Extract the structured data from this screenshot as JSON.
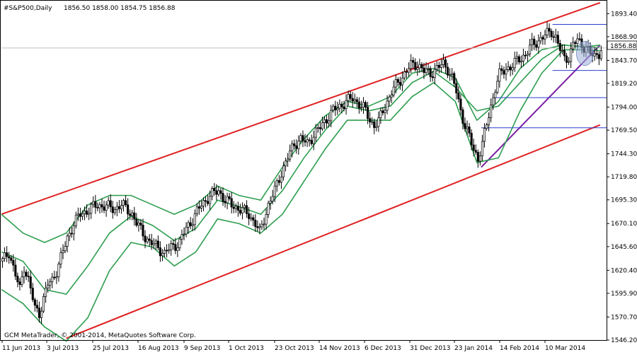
{
  "header": {
    "symbol_text": "#S&P500,Daily",
    "ohlc_text": "1856.50 1858.00 1854.75 1856.88"
  },
  "footer": {
    "copyright_text": "GCM MetaTrader, © 2001-2014, MetaQuotes Software Corp."
  },
  "current_price_label": "1856.88",
  "chart_data": {
    "type": "candlestick",
    "title": "#S&P500,Daily",
    "xlabel": "",
    "ylabel": "",
    "ylim": [
      1546.2,
      1906.4
    ],
    "y_ticks": [
      "1546.20",
      "1570.70",
      "1595.90",
      "1620.40",
      "1645.60",
      "1670.10",
      "1695.30",
      "1719.80",
      "1744.30",
      "1769.50",
      "1794.00",
      "1819.20",
      "1843.70",
      "1868.90",
      "1893.40"
    ],
    "x_ticks": [
      "11 Jun 2013",
      "3 Jul 2013",
      "25 Jul 2013",
      "16 Aug 2013",
      "9 Sep 2013",
      "1 Oct 2013",
      "23 Oct 2013",
      "14 Nov 2013",
      "6 Dec 2013",
      "31 Dec 2013",
      "23 Jan 2014",
      "14 Feb 2014",
      "10 Mar 2014"
    ],
    "last_close": 1856.88,
    "grid": false,
    "candle_color": "#000000",
    "price_series": [
      [
        0,
        1630
      ],
      [
        3,
        1640
      ],
      [
        6,
        1615
      ],
      [
        8,
        1600
      ],
      [
        10,
        1625
      ],
      [
        12,
        1610
      ],
      [
        14,
        1590
      ],
      [
        15,
        1580
      ],
      [
        17,
        1575
      ],
      [
        19,
        1590
      ],
      [
        21,
        1605
      ],
      [
        23,
        1610
      ],
      [
        25,
        1620
      ],
      [
        28,
        1640
      ],
      [
        30,
        1655
      ],
      [
        33,
        1670
      ],
      [
        36,
        1680
      ],
      [
        40,
        1685
      ],
      [
        44,
        1690
      ],
      [
        48,
        1688
      ],
      [
        52,
        1686
      ],
      [
        55,
        1690
      ],
      [
        58,
        1685
      ],
      [
        60,
        1680
      ],
      [
        62,
        1670
      ],
      [
        65,
        1660
      ],
      [
        68,
        1650
      ],
      [
        72,
        1645
      ],
      [
        75,
        1638
      ],
      [
        78,
        1645
      ],
      [
        82,
        1650
      ],
      [
        85,
        1665
      ],
      [
        88,
        1675
      ],
      [
        92,
        1690
      ],
      [
        96,
        1700
      ],
      [
        100,
        1705
      ],
      [
        103,
        1695
      ],
      [
        106,
        1690
      ],
      [
        110,
        1685
      ],
      [
        114,
        1680
      ],
      [
        117,
        1670
      ],
      [
        119,
        1660
      ],
      [
        121,
        1675
      ],
      [
        123,
        1690
      ],
      [
        126,
        1705
      ],
      [
        129,
        1725
      ],
      [
        132,
        1740
      ],
      [
        135,
        1755
      ],
      [
        138,
        1760
      ],
      [
        141,
        1755
      ],
      [
        144,
        1765
      ],
      [
        147,
        1772
      ],
      [
        150,
        1782
      ],
      [
        153,
        1790
      ],
      [
        156,
        1795
      ],
      [
        159,
        1800
      ],
      [
        162,
        1803
      ],
      [
        165,
        1798
      ],
      [
        168,
        1790
      ],
      [
        170,
        1780
      ],
      [
        172,
        1775
      ],
      [
        174,
        1778
      ],
      [
        176,
        1790
      ],
      [
        178,
        1800
      ],
      [
        180,
        1810
      ],
      [
        183,
        1820
      ],
      [
        186,
        1830
      ],
      [
        189,
        1838
      ],
      [
        192,
        1840
      ],
      [
        195,
        1832
      ],
      [
        198,
        1830
      ],
      [
        201,
        1835
      ],
      [
        204,
        1840
      ],
      [
        206,
        1835
      ],
      [
        208,
        1825
      ],
      [
        210,
        1810
      ],
      [
        212,
        1790
      ],
      [
        214,
        1775
      ],
      [
        216,
        1762
      ],
      [
        218,
        1748
      ],
      [
        220,
        1740
      ],
      [
        222,
        1755
      ],
      [
        224,
        1775
      ],
      [
        226,
        1795
      ],
      [
        228,
        1815
      ],
      [
        230,
        1828
      ],
      [
        233,
        1835
      ],
      [
        236,
        1838
      ],
      [
        239,
        1845
      ],
      [
        242,
        1850
      ],
      [
        245,
        1860
      ],
      [
        248,
        1865
      ],
      [
        251,
        1870
      ],
      [
        254,
        1875
      ],
      [
        256,
        1868
      ],
      [
        258,
        1855
      ],
      [
        260,
        1845
      ],
      [
        262,
        1848
      ],
      [
        264,
        1860
      ],
      [
        266,
        1865
      ],
      [
        268,
        1860
      ],
      [
        270,
        1858
      ],
      [
        272,
        1850
      ],
      [
        274,
        1848
      ],
      [
        276,
        1852
      ],
      [
        277,
        1856.88
      ]
    ],
    "series": [
      {
        "name": "",
        "color": "#2e9e4f",
        "values": [
          [
            0,
            1680
          ],
          [
            10,
            1660
          ],
          [
            20,
            1650
          ],
          [
            30,
            1660
          ],
          [
            40,
            1690
          ],
          [
            50,
            1700
          ],
          [
            60,
            1700
          ],
          [
            70,
            1690
          ],
          [
            80,
            1680
          ],
          [
            90,
            1690
          ],
          [
            100,
            1710
          ],
          [
            110,
            1700
          ],
          [
            120,
            1695
          ],
          [
            130,
            1730
          ],
          [
            140,
            1760
          ],
          [
            150,
            1785
          ],
          [
            160,
            1800
          ],
          [
            170,
            1795
          ],
          [
            180,
            1805
          ],
          [
            190,
            1830
          ],
          [
            200,
            1835
          ],
          [
            210,
            1825
          ],
          [
            220,
            1780
          ],
          [
            230,
            1800
          ],
          [
            240,
            1835
          ],
          [
            250,
            1855
          ],
          [
            260,
            1860
          ],
          [
            270,
            1858
          ],
          [
            277,
            1860
          ]
        ]
      },
      {
        "name": "",
        "color": "#2e9e4f",
        "values": [
          [
            0,
            1640
          ],
          [
            10,
            1630
          ],
          [
            20,
            1600
          ],
          [
            30,
            1595
          ],
          [
            40,
            1625
          ],
          [
            50,
            1660
          ],
          [
            60,
            1678
          ],
          [
            70,
            1668
          ],
          [
            80,
            1652
          ],
          [
            90,
            1665
          ],
          [
            100,
            1695
          ],
          [
            110,
            1688
          ],
          [
            120,
            1680
          ],
          [
            130,
            1705
          ],
          [
            140,
            1740
          ],
          [
            150,
            1770
          ],
          [
            160,
            1795
          ],
          [
            170,
            1790
          ],
          [
            180,
            1795
          ],
          [
            190,
            1820
          ],
          [
            200,
            1832
          ],
          [
            210,
            1815
          ],
          [
            220,
            1790
          ],
          [
            230,
            1795
          ],
          [
            240,
            1820
          ],
          [
            250,
            1845
          ],
          [
            260,
            1860
          ],
          [
            270,
            1858
          ],
          [
            277,
            1857
          ]
        ]
      },
      {
        "name": "",
        "color": "#2e9e4f",
        "values": [
          [
            0,
            1600
          ],
          [
            10,
            1585
          ],
          [
            20,
            1560
          ],
          [
            30,
            1545
          ],
          [
            40,
            1570
          ],
          [
            50,
            1620
          ],
          [
            60,
            1650
          ],
          [
            70,
            1645
          ],
          [
            80,
            1625
          ],
          [
            90,
            1640
          ],
          [
            100,
            1675
          ],
          [
            110,
            1670
          ],
          [
            120,
            1660
          ],
          [
            130,
            1680
          ],
          [
            140,
            1715
          ],
          [
            150,
            1750
          ],
          [
            160,
            1780
          ],
          [
            170,
            1780
          ],
          [
            180,
            1780
          ],
          [
            190,
            1805
          ],
          [
            200,
            1820
          ],
          [
            210,
            1800
          ],
          [
            220,
            1735
          ],
          [
            230,
            1740
          ],
          [
            240,
            1790
          ],
          [
            250,
            1830
          ],
          [
            260,
            1855
          ],
          [
            270,
            1855
          ],
          [
            277,
            1854
          ]
        ]
      }
    ],
    "trend_lines": [
      {
        "name": "",
        "color": "#e02020",
        "start": [
          0,
          1680
        ],
        "end": [
          277,
          1905
        ]
      },
      {
        "name": "",
        "color": "#e02020",
        "start": [
          30,
          1548
        ],
        "end": [
          277,
          1775
        ]
      },
      {
        "name": "",
        "color": "#7a1fa2",
        "start": [
          222,
          1730
        ],
        "end": [
          277,
          1860
        ]
      }
    ],
    "horizontal_lines": [
      {
        "name": "",
        "color": "#2a3fd0",
        "value": 1882,
        "from_x": 255,
        "to_x": 277
      },
      {
        "name": "",
        "color": "#2a3fd0",
        "value": 1833,
        "from_x": 255,
        "to_x": 277
      },
      {
        "name": "",
        "color": "#2a3fd0",
        "value": 1804,
        "from_x": 228,
        "to_x": 277
      },
      {
        "name": "",
        "color": "#2a3fd0",
        "value": 1772,
        "from_x": 222,
        "to_x": 277
      }
    ],
    "current_price_line": {
      "color": "#c0c0c0",
      "value": 1856.88
    },
    "ellipse_center": [
      270,
      1851
    ],
    "ellipse_color": "#9aaed8"
  }
}
